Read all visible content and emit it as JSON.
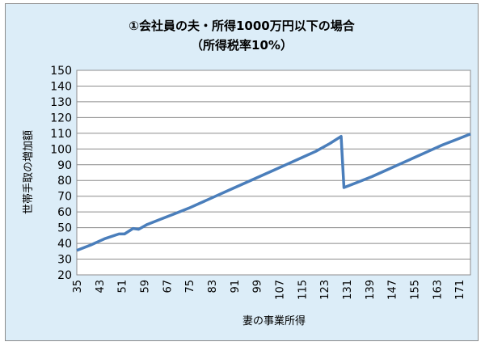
{
  "chart_data": {
    "type": "line",
    "title": "①会社員の夫・所得1000万円以下の場合",
    "subtitle": "（所得税率10%）",
    "xlabel": "妻の事業所得",
    "ylabel": "世帯手取の増加額",
    "ylim": [
      20,
      150
    ],
    "yticks": [
      20,
      30,
      40,
      50,
      60,
      70,
      80,
      90,
      100,
      110,
      120,
      130,
      140,
      150
    ],
    "xlim": [
      35,
      175
    ],
    "xticks": [
      "35",
      "43",
      "51",
      "59",
      "67",
      "75",
      "83",
      "91",
      "99",
      "107",
      "115",
      "123",
      "131",
      "139",
      "147",
      "155",
      "163",
      "171"
    ],
    "grid": true,
    "legend": "none",
    "line_color": "#4a7ebb",
    "series": [
      {
        "x": [
          35,
          40,
          45,
          50,
          52,
          55,
          57,
          60,
          65,
          70,
          75,
          80,
          85,
          90,
          95,
          100,
          105,
          110,
          115,
          120,
          125,
          129,
          130,
          135,
          140,
          145,
          150,
          155,
          160,
          165,
          170,
          175
        ],
        "values": [
          35.5,
          39,
          43,
          46,
          46,
          49.5,
          49,
          52,
          55.5,
          59,
          62.5,
          66.5,
          70.5,
          74.5,
          78.5,
          82.5,
          86.5,
          90.5,
          94.5,
          98.5,
          103.5,
          108,
          75.5,
          79,
          82.5,
          86.5,
          90.5,
          94.5,
          98.5,
          102.5,
          106,
          109.5
        ]
      }
    ]
  }
}
